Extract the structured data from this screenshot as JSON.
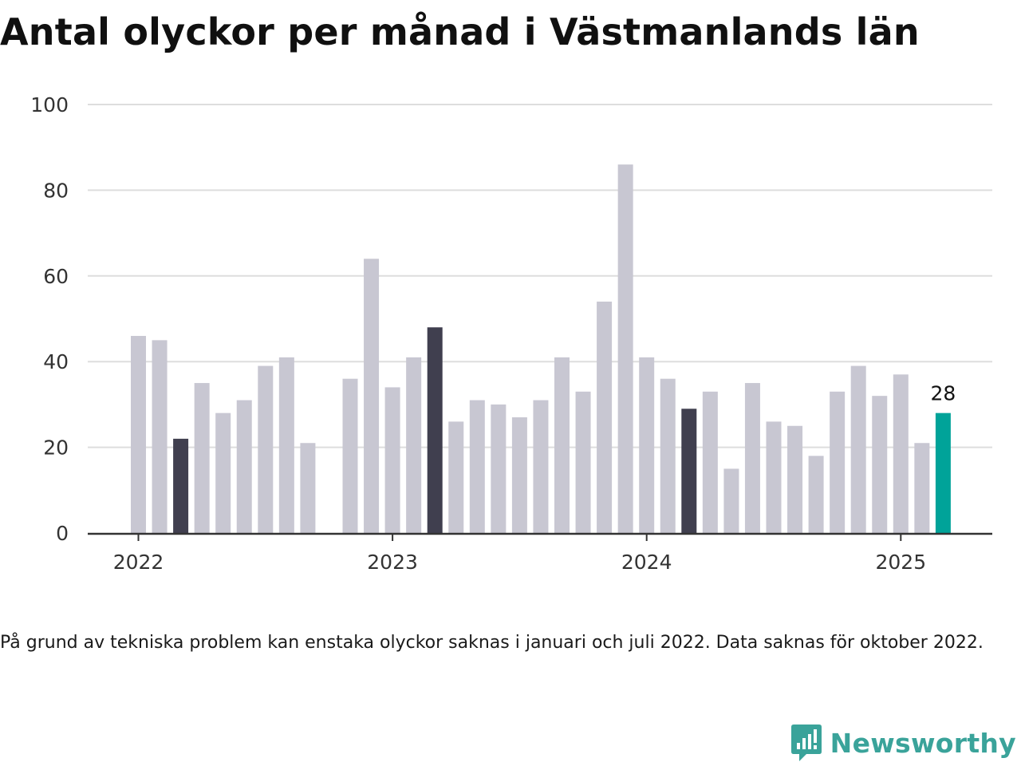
{
  "title": "Antal olyckor per månad i Västmanlands län",
  "note": "På grund av tekniska problem kan enstaka olyckor saknas i januari och juli 2022. Data saknas för oktober 2022.",
  "brand": {
    "name": "Newsworthy"
  },
  "colors": {
    "bar": "#c8c7d2",
    "highlight": "#403f4f",
    "latest": "#00a399",
    "grid": "#dddddd",
    "axis": "#333333",
    "text": "#333333"
  },
  "chart_data": {
    "type": "bar",
    "x_ticks": [
      "2022",
      "2023",
      "2024",
      "2025"
    ],
    "y_ticks": [
      0,
      20,
      40,
      60,
      80,
      100
    ],
    "ylim": [
      0,
      100
    ],
    "grid": true,
    "categories": [
      "2022-01",
      "2022-02",
      "2022-03",
      "2022-04",
      "2022-05",
      "2022-06",
      "2022-07",
      "2022-08",
      "2022-09",
      "2022-10",
      "2022-11",
      "2022-12",
      "2023-01",
      "2023-02",
      "2023-03",
      "2023-04",
      "2023-05",
      "2023-06",
      "2023-07",
      "2023-08",
      "2023-09",
      "2023-10",
      "2023-11",
      "2023-12",
      "2024-01",
      "2024-02",
      "2024-03",
      "2024-04",
      "2024-05",
      "2024-06",
      "2024-07",
      "2024-08",
      "2024-09",
      "2024-10",
      "2024-11",
      "2024-12",
      "2025-01",
      "2025-02",
      "2025-03"
    ],
    "values": [
      46,
      45,
      22,
      35,
      28,
      31,
      39,
      41,
      21,
      null,
      36,
      64,
      34,
      41,
      48,
      26,
      31,
      30,
      27,
      31,
      41,
      33,
      54,
      86,
      41,
      36,
      29,
      33,
      15,
      35,
      26,
      25,
      18,
      33,
      39,
      32,
      37,
      21,
      28
    ],
    "highlighted": [
      "2022-03",
      "2023-03",
      "2024-03"
    ],
    "latest": {
      "category": "2025-03",
      "label": "28"
    }
  }
}
